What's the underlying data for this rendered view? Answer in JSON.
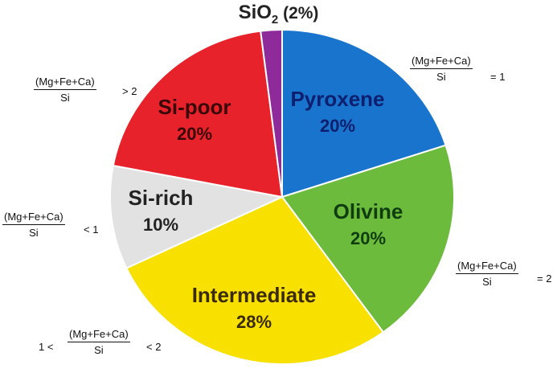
{
  "chart_data": {
    "type": "pie",
    "title": {
      "base": "SiO",
      "subscript": "2",
      "suffix": " (2%)"
    },
    "slices": [
      {
        "label": "Pyroxene",
        "value": 20,
        "value_label": "20%",
        "color": "#1874cd",
        "text_color": "#0d1f6e"
      },
      {
        "label": "Olivine",
        "value": 20,
        "value_label": "20%",
        "color": "#6cbb3c",
        "text_color": "#0f3d10"
      },
      {
        "label": "Intermediate",
        "value": 28,
        "value_label": "28%",
        "color": "#f8e000",
        "text_color": "#3a2a05"
      },
      {
        "label": "Si-rich",
        "value": 10,
        "value_label": "10%",
        "color": "#e2e2e2",
        "text_color": "#222222"
      },
      {
        "label": "Si-poor",
        "value": 20,
        "value_label": "20%",
        "color": "#e8222b",
        "text_color": "#3a0808"
      },
      {
        "label": "SiO2",
        "value": 2,
        "value_label": "",
        "color": "#8e2a9a",
        "text_color": "#ffffff"
      }
    ],
    "start": "top",
    "direction": "clockwise"
  },
  "annotations": {
    "numerator": "(Mg+Fe+Ca)",
    "denominator": "Si",
    "pyroxene": {
      "suffix": "= 1"
    },
    "olivine": {
      "suffix": "= 2"
    },
    "intermediate": {
      "prefix": "1 <",
      "suffix": "< 2"
    },
    "si_rich": {
      "suffix": "< 1"
    },
    "si_poor": {
      "suffix": "> 2"
    }
  }
}
